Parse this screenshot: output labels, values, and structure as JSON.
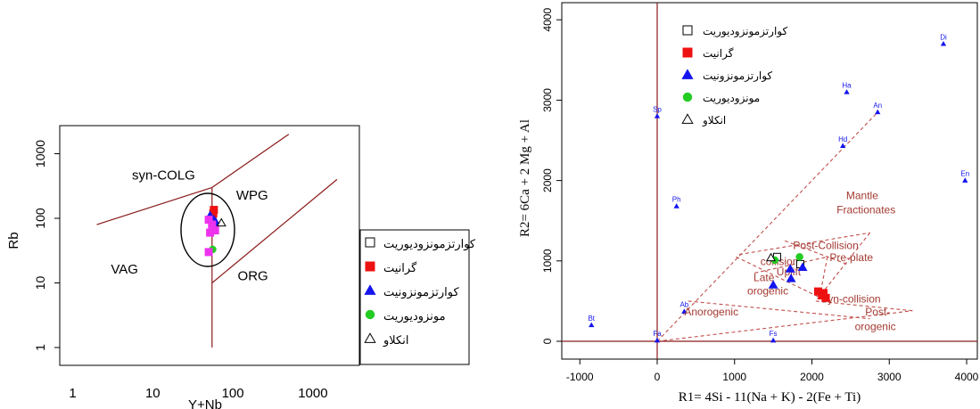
{
  "chart_data": [
    {
      "type": "scatter",
      "title": "",
      "xlabel": "Y+Nb",
      "ylabel": "Rb",
      "xscale": "log",
      "yscale": "log",
      "xlim": [
        1,
        2000
      ],
      "ylim": [
        1,
        2000
      ],
      "xticks": [
        {
          "value": 1,
          "label": "1"
        },
        {
          "value": 10,
          "label": "10"
        },
        {
          "value": 100,
          "label": "100"
        },
        {
          "value": 1000,
          "label": "1000"
        }
      ],
      "yticks": [
        {
          "value": 1,
          "label": "1"
        },
        {
          "value": 10,
          "label": "10"
        },
        {
          "value": 100,
          "label": "100"
        },
        {
          "value": 1000,
          "label": "1000"
        }
      ],
      "field_labels": [
        {
          "text": "syn-COLG",
          "x": 5.5,
          "y": 400
        },
        {
          "text": "WPG",
          "x": 110,
          "y": 195
        },
        {
          "text": "VAG",
          "x": 3,
          "y": 14
        },
        {
          "text": "ORG",
          "x": 115,
          "y": 11
        }
      ],
      "boundaries": [
        [
          [
            2,
            80
          ],
          [
            55,
            300
          ]
        ],
        [
          [
            55,
            300
          ],
          [
            500,
            2000
          ]
        ],
        [
          [
            55,
            1
          ],
          [
            55,
            300
          ]
        ],
        [
          [
            55,
            10
          ],
          [
            2000,
            400
          ]
        ]
      ],
      "series": [
        {
          "name": "کوارتزمونزودیوریت",
          "marker": "open-square",
          "color": "#000000",
          "points": [
            [
              55,
              100
            ]
          ]
        },
        {
          "name": "گرانیت",
          "marker": "square",
          "color": "#ee1111",
          "points": [
            [
              58,
              135
            ],
            [
              57,
              120
            ],
            [
              56,
              105
            ]
          ]
        },
        {
          "name": "کوارتزمونزونیت",
          "marker": "triangle",
          "color": "#1515ee",
          "points": [
            [
              52,
              110
            ],
            [
              58,
              95
            ],
            [
              62,
              85
            ]
          ]
        },
        {
          "name": "مونزودیوریت",
          "marker": "circle",
          "color": "#22cc22",
          "points": [
            [
              56,
              33
            ]
          ]
        },
        {
          "name": "انکلاو",
          "marker": "open-triangle",
          "color": "#000000",
          "points": [
            [
              72,
              85
            ]
          ]
        },
        {
          "name": "",
          "marker": "square",
          "color": "#ee33ee",
          "points": [
            [
              50,
              95
            ],
            [
              55,
              80
            ],
            [
              52,
              60
            ],
            [
              60,
              65
            ],
            [
              50,
              30
            ]
          ]
        }
      ],
      "legend_position": "bottom-right"
    },
    {
      "type": "scatter",
      "title": "",
      "xlabel": "R1= 4Si - 11(Na + K) - 2(Fe + Ti)",
      "ylabel": "R2= 6Ca + 2 Mg + Al",
      "xlim": [
        -1000,
        4100
      ],
      "ylim": [
        -150,
        4150
      ],
      "xticks": [
        -1000,
        0,
        1000,
        2000,
        3000,
        4000
      ],
      "yticks": [
        0,
        1000,
        2000,
        3000,
        4000
      ],
      "reference_lines": {
        "x": 0,
        "y": 0
      },
      "mineral_points": [
        {
          "label": "Di",
          "x": 3700,
          "y": 3700
        },
        {
          "label": "Ha",
          "x": 2450,
          "y": 3100
        },
        {
          "label": "An",
          "x": 2850,
          "y": 2850
        },
        {
          "label": "Sp",
          "x": 0,
          "y": 2800
        },
        {
          "label": "Hd",
          "x": 2400,
          "y": 2430
        },
        {
          "label": "En",
          "x": 3980,
          "y": 2000
        },
        {
          "label": "Ph",
          "x": 250,
          "y": 1680
        },
        {
          "label": "Ab",
          "x": 350,
          "y": 370
        },
        {
          "label": "Bt",
          "x": -850,
          "y": 200
        },
        {
          "label": "Fa",
          "x": 0,
          "y": 10
        },
        {
          "label": "Fs",
          "x": 1500,
          "y": 10
        }
      ],
      "field_labels": [
        {
          "text": "Mantle",
          "x": 2650,
          "y": 1770
        },
        {
          "text": "Fractionates",
          "x": 2700,
          "y": 1590
        },
        {
          "text": "Pre-plate",
          "x": 2510,
          "y": 1000
        },
        {
          "text": "Post-Collision",
          "x": 2180,
          "y": 1145
        },
        {
          "text": "collision",
          "x": 1580,
          "y": 950
        },
        {
          "text": "Uplift",
          "x": 1700,
          "y": 820
        },
        {
          "text": "Late",
          "x": 1380,
          "y": 750
        },
        {
          "text": "orogenic",
          "x": 1430,
          "y": 580
        },
        {
          "text": "Anorogenic",
          "x": 700,
          "y": 320
        },
        {
          "text": "Syn-collision",
          "x": 2500,
          "y": 480
        },
        {
          "text": "Post-",
          "x": 2850,
          "y": 320
        },
        {
          "text": "orogenic",
          "x": 2820,
          "y": 140
        }
      ],
      "boundaries": [
        [
          [
            0,
            0
          ],
          [
            2850,
            2850
          ]
        ],
        [
          [
            0,
            0
          ],
          [
            3300,
            380
          ]
        ],
        [
          [
            400,
            500
          ],
          [
            2750,
            280
          ]
        ],
        [
          [
            1020,
            1050
          ],
          [
            2200,
            500
          ]
        ],
        [
          [
            1060,
            1080
          ],
          [
            2750,
            1350
          ]
        ],
        [
          [
            2750,
            1350
          ],
          [
            2050,
            500
          ]
        ],
        [
          [
            2050,
            500
          ],
          [
            3300,
            380
          ]
        ],
        [
          [
            1260,
            850
          ],
          [
            2200,
            1050
          ]
        ],
        [
          [
            2200,
            1050
          ],
          [
            2100,
            550
          ]
        ],
        [
          [
            1650,
            1250
          ],
          [
            2480,
            950
          ]
        ]
      ],
      "series": [
        {
          "name": "کوارتزمونزودیوریت",
          "marker": "open-square",
          "color": "#000000",
          "points": [
            [
              1550,
              1050
            ],
            [
              1850,
              960
            ]
          ]
        },
        {
          "name": "گرانیت",
          "marker": "square",
          "color": "#ee1111",
          "points": [
            [
              2080,
              620
            ],
            [
              2130,
              570
            ],
            [
              2180,
              540
            ],
            [
              2150,
              600
            ]
          ]
        },
        {
          "name": "کوارتزمونزونیت",
          "marker": "triangle",
          "color": "#1515ee",
          "points": [
            [
              1720,
              900
            ],
            [
              1880,
              920
            ],
            [
              1730,
              780
            ],
            [
              1500,
              700
            ]
          ]
        },
        {
          "name": "مونزودیوریت",
          "marker": "circle",
          "color": "#22cc22",
          "points": [
            [
              1520,
              1010
            ],
            [
              1840,
              1050
            ]
          ]
        },
        {
          "name": "انکلاو",
          "marker": "open-triangle",
          "color": "#000000",
          "points": [
            [
              1470,
              1040
            ]
          ]
        }
      ],
      "legend_position": "top-left"
    }
  ]
}
